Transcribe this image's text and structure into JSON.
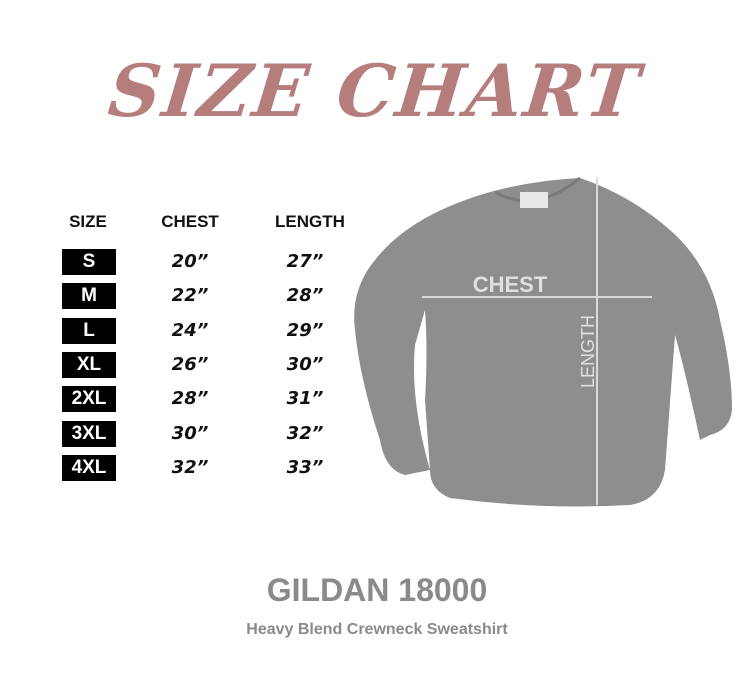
{
  "title": "SIZE CHART",
  "table": {
    "headers": [
      "SIZE",
      "CHEST",
      "LENGTH"
    ],
    "rows": [
      {
        "size": "S",
        "chest": "20”",
        "length": "27”"
      },
      {
        "size": "M",
        "chest": "22”",
        "length": "28”"
      },
      {
        "size": "L",
        "chest": "24”",
        "length": "29”"
      },
      {
        "size": "XL",
        "chest": "26”",
        "length": "30”"
      },
      {
        "size": "2XL",
        "chest": "28”",
        "length": "31”"
      },
      {
        "size": "3XL",
        "chest": "30”",
        "length": "32”"
      },
      {
        "size": "4XL",
        "chest": "32”",
        "length": "33”"
      }
    ]
  },
  "diagram": {
    "chest_label": "CHEST",
    "length_label": "LENGTH"
  },
  "product": {
    "name": "GILDAN 18000",
    "description": "Heavy Blend Crewneck Sweatshirt"
  },
  "colors": {
    "title": "#b57d7c",
    "shirt": "#8e8e8e",
    "text_gray": "#8a8a8a"
  }
}
